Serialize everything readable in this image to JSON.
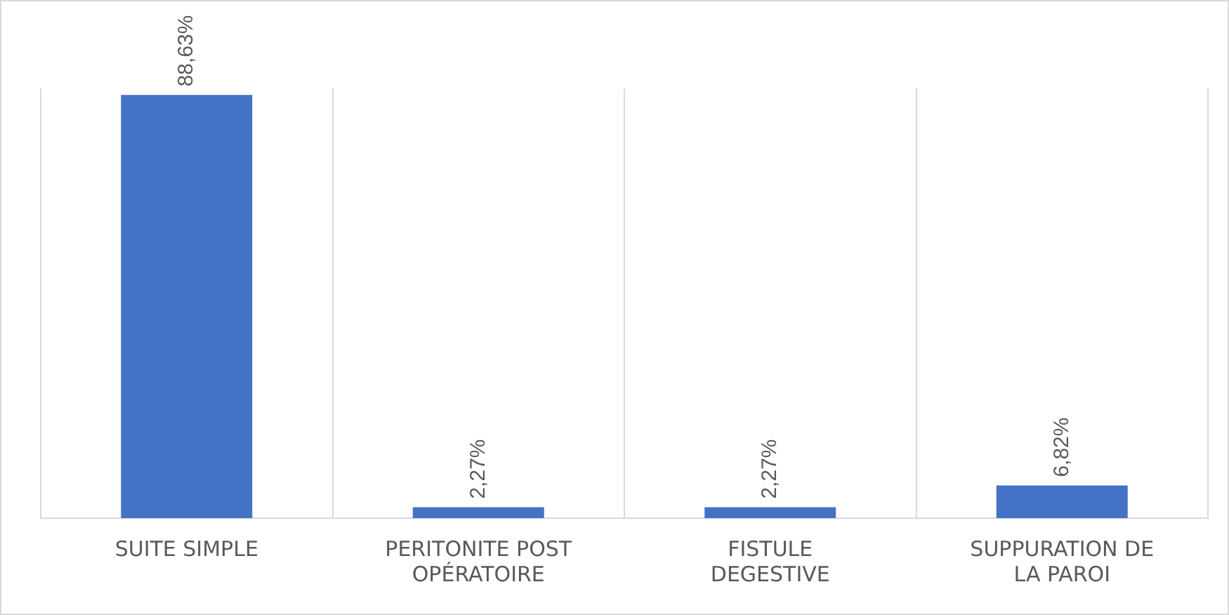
{
  "chart_data": {
    "type": "bar",
    "categories": [
      "SUITE SIMPLE",
      "PERITONITE POST OPÉRATOIRE",
      "FISTULE DEGESTIVE",
      "SUPPURATION DE LA PAROI"
    ],
    "values": [
      88.63,
      2.27,
      2.27,
      6.82
    ],
    "value_labels": [
      "88,63%",
      "2,27%",
      "2,27%",
      "6,82%"
    ],
    "color": "#4472c4",
    "grid": "x"
  }
}
